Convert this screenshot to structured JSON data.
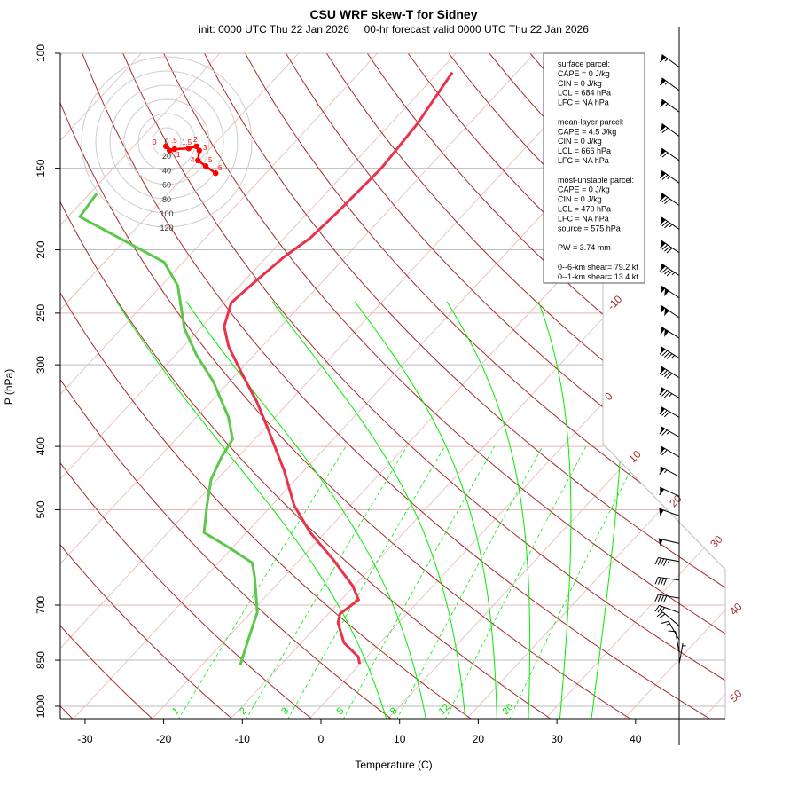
{
  "chart_data": {
    "type": "line",
    "title": "CSU WRF skew-T for Sidney",
    "subtitle": "init: 0000 UTC Thu 22 Jan 2026     00-hr forecast valid 0000 UTC Thu 22 Jan 2026",
    "xlabel": "Temperature (C)",
    "ylabel": "P (hPa)",
    "xlim": [
      -30,
      40
    ],
    "ylim": [
      1000,
      100
    ],
    "y_scale": "log",
    "x_ticks": [
      "-30",
      "-20",
      "-10",
      "0",
      "10",
      "20",
      "30",
      "40"
    ],
    "y_ticks": [
      "100",
      "150",
      "200",
      "250",
      "300",
      "400",
      "500",
      "700",
      "850",
      "1000"
    ],
    "isotherm_labels": [
      "-10",
      "0",
      "10",
      "20",
      "30",
      "40",
      "50"
    ],
    "mixing_ratio_labels": [
      "1",
      "2",
      "3",
      "5",
      "8",
      "12",
      "20"
    ],
    "colors": {
      "temperature": "#e8344a",
      "dewpoint": "#5cc84a",
      "dry_adiabat": "#a52a2a",
      "isotherm": "#e8b4b4",
      "moist_adiabat": "#00ee00",
      "mixing_ratio": "#00ee00",
      "hodograph": "#ff0000"
    },
    "series": [
      {
        "name": "temperature",
        "pressure": [
          861,
          840,
          799,
          745,
          722,
          687,
          654,
          595,
          542,
          493,
          435,
          373,
          342,
          308,
          281,
          262,
          241,
          225,
          205,
          192,
          176,
          150,
          128,
          107
        ],
        "values": [
          -0.1,
          -1.1,
          -4.6,
          -7.7,
          -8.5,
          -7.8,
          -10.2,
          -15.9,
          -21.9,
          -27.1,
          -32.6,
          -39.9,
          -44.1,
          -49.6,
          -54.3,
          -57.2,
          -59.1,
          -58.6,
          -57.8,
          -56.7,
          -56.3,
          -55.9,
          -56.6,
          -58.2
        ]
      },
      {
        "name": "dewpoint",
        "pressure": [
          866,
          788,
          718,
          634,
          603,
          573,
          542,
          493,
          449,
          415,
          390,
          361,
          318,
          290,
          264,
          227,
          209,
          178,
          164
        ],
        "values": [
          -15.1,
          -17.2,
          -19.2,
          -23.7,
          -25.7,
          -30.2,
          -35.4,
          -38.2,
          -40.8,
          -42.1,
          -42.8,
          -45.9,
          -52.1,
          -57.3,
          -62.0,
          -67.9,
          -72.4,
          -88.5,
          -89.1
        ]
      }
    ],
    "winds": {
      "pressure": [
        862,
        827,
        791,
        753,
        719,
        683,
        641,
        600,
        563,
        511,
        477,
        445,
        415,
        387,
        361,
        337,
        314,
        293,
        273,
        254,
        237,
        219,
        202,
        186,
        171,
        158,
        146,
        134,
        123,
        114,
        105
      ],
      "direction_deg": [
        10,
        350,
        330,
        310,
        290,
        280,
        278,
        280,
        283,
        290,
        295,
        298,
        300,
        300,
        300,
        300,
        302,
        302,
        302,
        304,
        304,
        304,
        304,
        304,
        305,
        305,
        305,
        306,
        306,
        306,
        306
      ],
      "speed_kt": [
        6,
        10,
        13,
        20,
        30,
        38,
        42,
        45,
        48,
        55,
        60,
        65,
        70,
        75,
        80,
        85,
        90,
        95,
        100,
        105,
        100,
        95,
        90,
        85,
        80,
        75,
        70,
        70,
        65,
        65,
        65
      ]
    },
    "hodograph": {
      "ring_labels": [
        "0",
        "20",
        "40",
        "60",
        "80",
        "100",
        "120"
      ],
      "ring_kt": [
        20,
        40,
        60,
        80,
        100,
        120
      ],
      "height_labels": [
        "0",
        ".5",
        "1",
        "1.5",
        "2",
        "3",
        "4",
        "5",
        "6"
      ],
      "u_kt": [
        -1,
        4,
        11,
        31,
        42,
        46,
        44,
        55,
        69
      ],
      "v_kt": [
        -6,
        -12,
        -10,
        -9,
        -6,
        -12,
        -26,
        -34,
        -44
      ]
    }
  },
  "info_box": {
    "lines": [
      "surface parcel:",
      "CAPE = 0 J/kg",
      "CIN = 0 J/kg",
      "LCL = 684 hPa",
      "LFC = NA hPa",
      "",
      "mean-layer parcel:",
      "CAPE = 4.5 J/kg",
      "CIN = 0 J/kg",
      "LCL = 666 hPa",
      "LFC = NA hPa",
      "",
      "most-unstable parcel:",
      "CAPE = 0 J/kg",
      "CIN = 0 J/kg",
      "LCL = 470 hPa",
      "LFC = NA hPa",
      "source = 575 hPa",
      "",
      "PW =  3.74 mm",
      "",
      "0--6-km shear= 79.2 kt",
      "0--1-km shear= 13.4 kt"
    ]
  }
}
